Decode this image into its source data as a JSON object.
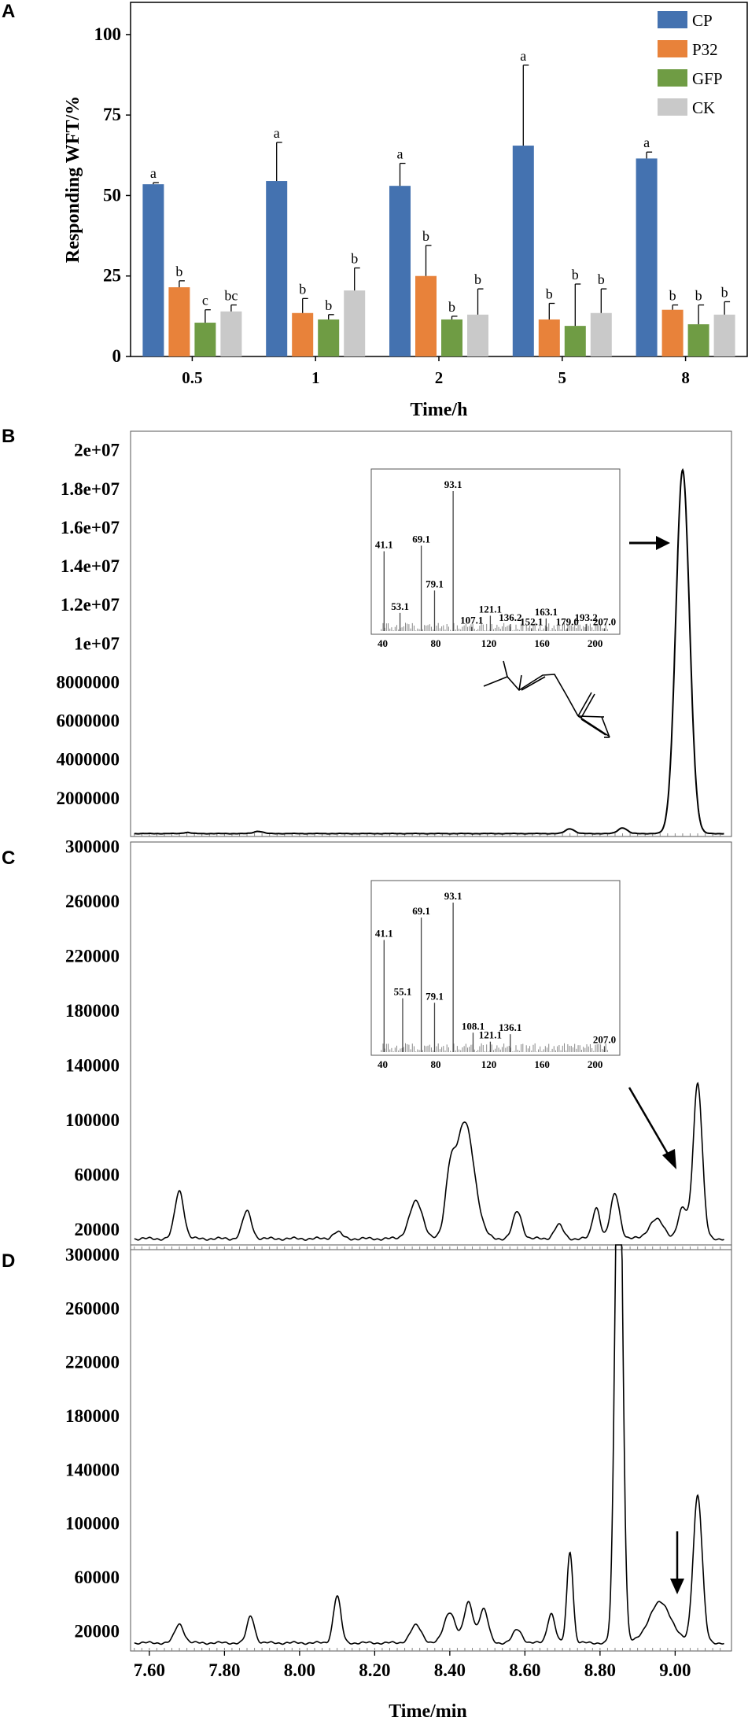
{
  "panels": {
    "A": "A",
    "B": "B",
    "C": "C",
    "D": "D"
  },
  "colors": {
    "CP": "#4472b0",
    "P32": "#e8823a",
    "GFP": "#6f9c44",
    "CK": "#c9c9c9"
  },
  "chart_data": [
    {
      "id": "A",
      "type": "bar",
      "xlabel": "Time/h",
      "ylabel": "Responding WFT/%",
      "categories": [
        "0.5",
        "1",
        "2",
        "5",
        "8"
      ],
      "ylim": [
        0,
        110
      ],
      "yticks": [
        "0",
        "25",
        "50",
        "75",
        "100"
      ],
      "legend_position": "top-right",
      "series": [
        {
          "name": "CP",
          "values": [
            53.5,
            54.5,
            53,
            65.5,
            61.5
          ],
          "errors": [
            0.5,
            12,
            7,
            25,
            2
          ],
          "letters": [
            "a",
            "a",
            "a",
            "a",
            "a"
          ]
        },
        {
          "name": "P32",
          "values": [
            21.5,
            13.5,
            25,
            11.5,
            14.5
          ],
          "errors": [
            2,
            4.5,
            9.5,
            5,
            1.5
          ],
          "letters": [
            "b",
            "b",
            "b",
            "b",
            "b"
          ]
        },
        {
          "name": "GFP",
          "values": [
            10.5,
            11.5,
            11.5,
            9.5,
            10
          ],
          "errors": [
            4,
            1.5,
            1,
            13,
            6
          ],
          "letters": [
            "c",
            "b",
            "b",
            "b",
            "b"
          ]
        },
        {
          "name": "CK",
          "values": [
            14,
            20.5,
            13,
            13.5,
            13
          ],
          "errors": [
            2,
            7,
            8,
            7.5,
            4
          ],
          "letters": [
            "bc",
            "b",
            "b",
            "b",
            "b"
          ]
        }
      ]
    },
    {
      "id": "B",
      "type": "line",
      "xlim": [
        7.55,
        9.15
      ],
      "ylim": [
        0,
        20800000
      ],
      "yticks": [
        "2e+07",
        "1.8e+07",
        "1.6e+07",
        "1.4e+07",
        "1.2e+07",
        "1e+07",
        "8000000",
        "6000000",
        "4000000",
        "2000000"
      ],
      "ytick_values": [
        20000000,
        18000000,
        16000000,
        14000000,
        12000000,
        10000000,
        8000000,
        6000000,
        4000000,
        2000000
      ],
      "baseline": 150000,
      "peaks": [
        [
          7.7,
          60000,
          0.01
        ],
        [
          7.89,
          120000,
          0.012
        ],
        [
          8.72,
          250000,
          0.012
        ],
        [
          8.86,
          300000,
          0.012
        ],
        [
          9.02,
          18800000,
          0.018
        ]
      ],
      "arrow_label": "",
      "inset": {
        "xlim": [
          35,
          215
        ],
        "xticks": [
          "40",
          "80",
          "120",
          "160",
          "200"
        ],
        "peaks": [
          [
            41.1,
            0.57
          ],
          [
            53.1,
            0.13
          ],
          [
            69.1,
            0.61
          ],
          [
            79.1,
            0.29
          ],
          [
            93.1,
            1.0
          ],
          [
            107.1,
            0.03
          ],
          [
            121.1,
            0.11
          ],
          [
            136.2,
            0.05
          ],
          [
            152.1,
            0.02
          ],
          [
            163.1,
            0.09
          ],
          [
            179.0,
            0.02
          ],
          [
            193.2,
            0.05
          ],
          [
            207.0,
            0.02
          ]
        ],
        "labels": [
          "41.1",
          "53.1",
          "69.1",
          "79.1",
          "93.1",
          "107.1",
          "121.1",
          "136.2",
          "152.1",
          "163.1",
          "179.0",
          "193.2",
          "207.0"
        ]
      }
    },
    {
      "id": "C",
      "type": "line",
      "xlim": [
        7.55,
        9.15
      ],
      "ylim": [
        5000,
        302000
      ],
      "yticks": [
        "300000",
        "260000",
        "220000",
        "180000",
        "140000",
        "100000",
        "60000",
        "20000"
      ],
      "ytick_values": [
        300000,
        260000,
        220000,
        180000,
        140000,
        100000,
        60000,
        20000
      ],
      "baseline": 13000,
      "peaks": [
        [
          7.68,
          35000,
          0.012
        ],
        [
          7.86,
          20000,
          0.012
        ],
        [
          8.1,
          5000,
          0.012
        ],
        [
          8.31,
          27000,
          0.018
        ],
        [
          8.4,
          35000,
          0.012
        ],
        [
          8.44,
          85000,
          0.025
        ],
        [
          8.58,
          20000,
          0.012
        ],
        [
          8.69,
          10000,
          0.012
        ],
        [
          8.79,
          23000,
          0.01
        ],
        [
          8.84,
          33000,
          0.012
        ],
        [
          8.95,
          14000,
          0.02
        ],
        [
          9.02,
          22000,
          0.012
        ],
        [
          9.06,
          114000,
          0.012
        ]
      ],
      "inset": {
        "xlim": [
          35,
          215
        ],
        "xticks": [
          "40",
          "80",
          "120",
          "160",
          "200"
        ],
        "peaks": [
          [
            41.1,
            0.75
          ],
          [
            55.1,
            0.36
          ],
          [
            69.1,
            0.9
          ],
          [
            79.1,
            0.33
          ],
          [
            93.1,
            1.0
          ],
          [
            108.1,
            0.13
          ],
          [
            121.1,
            0.07
          ],
          [
            136.1,
            0.12
          ],
          [
            207.0,
            0.04
          ]
        ],
        "labels": [
          "41.1",
          "55.1",
          "69.1",
          "79.1",
          "93.1",
          "108.1",
          "121.1",
          "136.1",
          "207.0"
        ]
      }
    },
    {
      "id": "D",
      "type": "line",
      "xlabel": "Time/min",
      "xlim": [
        7.55,
        9.15
      ],
      "xticks": [
        "7.60",
        "7.80",
        "8.00",
        "8.20",
        "8.40",
        "8.60",
        "8.80",
        "9.00"
      ],
      "xtick_values": [
        7.6,
        7.8,
        8.0,
        8.2,
        8.4,
        8.6,
        8.8,
        9.0
      ],
      "ylim": [
        5000,
        307000
      ],
      "yticks": [
        "300000",
        "260000",
        "220000",
        "180000",
        "140000",
        "100000",
        "60000",
        "20000"
      ],
      "ytick_values": [
        300000,
        260000,
        220000,
        180000,
        140000,
        100000,
        60000,
        20000
      ],
      "baseline": 11000,
      "peaks": [
        [
          7.68,
          14000,
          0.012
        ],
        [
          7.87,
          20000,
          0.01
        ],
        [
          8.1,
          35000,
          0.01
        ],
        [
          8.31,
          13000,
          0.015
        ],
        [
          8.4,
          23000,
          0.015
        ],
        [
          8.45,
          30000,
          0.012
        ],
        [
          8.49,
          25000,
          0.012
        ],
        [
          8.58,
          10000,
          0.012
        ],
        [
          8.67,
          22000,
          0.01
        ],
        [
          8.72,
          68000,
          0.008
        ],
        [
          8.85,
          420000,
          0.01
        ],
        [
          8.96,
          30000,
          0.03
        ],
        [
          9.06,
          110000,
          0.012
        ]
      ]
    }
  ]
}
